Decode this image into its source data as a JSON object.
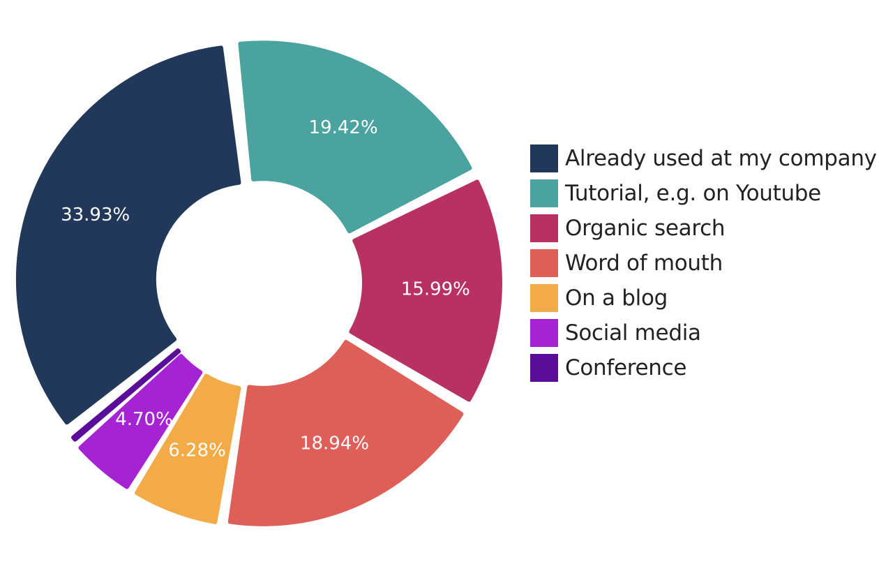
{
  "chart_data": {
    "type": "pie",
    "donut": true,
    "legend_position": "right",
    "categories": [
      "Already used at my company",
      "Tutorial, e.g. on Youtube",
      "Organic search",
      "Word of mouth",
      "On a blog",
      "Social media",
      "Conference"
    ],
    "values": [
      33.93,
      19.42,
      15.99,
      18.94,
      6.28,
      4.7,
      0.74
    ],
    "labels": [
      "33.93%",
      "19.42%",
      "15.99%",
      "18.94%",
      "6.28%",
      "4.70%",
      ""
    ],
    "colors": [
      "#22385a",
      "#4aa39f",
      "#b93162",
      "#de5f57",
      "#f2ab47",
      "#a623d3",
      "#5a0d98"
    ]
  }
}
